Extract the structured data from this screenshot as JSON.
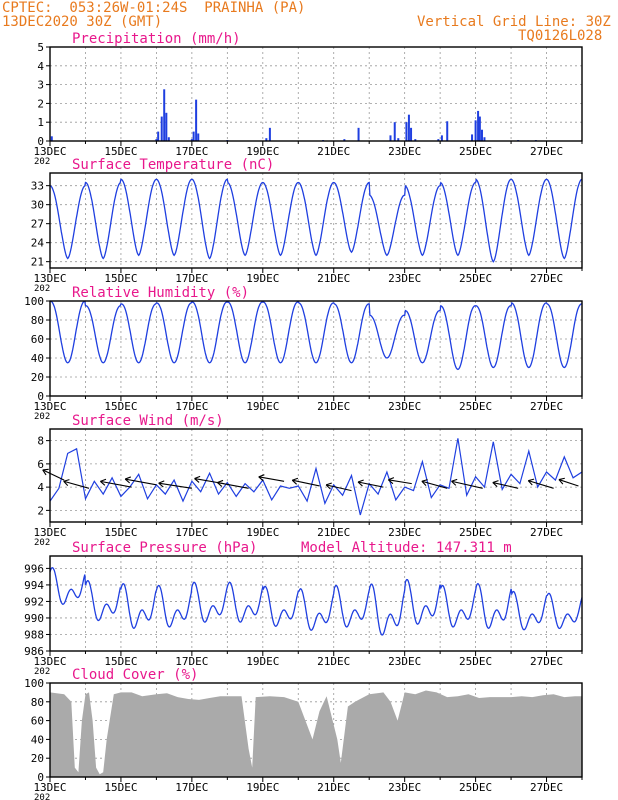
{
  "header": {
    "line1": "CPTEC:  053:26W-01:24S  PRAINHA (PA)",
    "line2": "13DEC2020 30Z (GMT)",
    "grid_note": "Vertical Grid Line: 30Z",
    "code": "TQ0126L028"
  },
  "colors": {
    "header": "#e87a1e",
    "title": "#e8188c",
    "series": "#1f3fe0",
    "cloud": "#aaaaaa",
    "grid": "#999999",
    "frame": "#000000"
  },
  "x_tick_labels": [
    "13DEC",
    "15DEC",
    "17DEC",
    "19DEC",
    "21DEC",
    "23DEC",
    "25DEC",
    "27DEC"
  ],
  "x_edge_fragment": "202",
  "chart_data": [
    {
      "id": "precipitation",
      "type": "bar",
      "title": "Precipitation (mm/h)",
      "x_unit": "days since 13DEC2020 00Z",
      "x_range": [
        0,
        15
      ],
      "ylim": [
        0,
        5
      ],
      "yticks": [
        0,
        1,
        2,
        3,
        4,
        5
      ],
      "grid": true,
      "bars": [
        [
          0.05,
          0.25
        ],
        [
          3.0,
          0.1
        ],
        [
          3.05,
          0.5
        ],
        [
          3.15,
          1.3
        ],
        [
          3.22,
          2.75
        ],
        [
          3.28,
          1.5
        ],
        [
          3.35,
          0.2
        ],
        [
          4.0,
          0.1
        ],
        [
          4.05,
          0.5
        ],
        [
          4.12,
          2.2
        ],
        [
          4.18,
          0.4
        ],
        [
          5.0,
          0.05
        ],
        [
          6.1,
          0.15
        ],
        [
          6.2,
          0.7
        ],
        [
          7.7,
          0.05
        ],
        [
          8.3,
          0.1
        ],
        [
          8.7,
          0.7
        ],
        [
          9.6,
          0.3
        ],
        [
          9.72,
          1.0
        ],
        [
          9.82,
          0.15
        ],
        [
          10.05,
          1.0
        ],
        [
          10.12,
          1.4
        ],
        [
          10.18,
          0.7
        ],
        [
          10.3,
          0.1
        ],
        [
          10.95,
          0.1
        ],
        [
          11.05,
          0.3
        ],
        [
          11.2,
          1.05
        ],
        [
          11.9,
          0.35
        ],
        [
          12.0,
          1.1
        ],
        [
          12.07,
          1.6
        ],
        [
          12.12,
          1.3
        ],
        [
          12.18,
          0.6
        ],
        [
          12.25,
          0.2
        ],
        [
          13.2,
          0.05
        ],
        [
          13.7,
          0.05
        ]
      ]
    },
    {
      "id": "temperature",
      "type": "line",
      "title": "Surface Temperature (nC)",
      "x_unit": "days since 13DEC2020 00Z",
      "x_range": [
        0,
        15
      ],
      "ylim": [
        20,
        35
      ],
      "yticks": [
        21,
        24,
        27,
        30,
        33
      ],
      "grid": true,
      "daily_min": [
        21.5,
        21.5,
        22.0,
        22.0,
        21.5,
        22.0,
        22.0,
        22.0,
        22.5,
        22.0,
        22.0,
        22.0,
        21.0,
        22.0,
        21.5
      ],
      "daily_max": [
        33.0,
        33.5,
        34.0,
        34.0,
        34.0,
        33.5,
        33.5,
        33.5,
        33.5,
        31.5,
        33.0,
        33.5,
        34.0,
        34.0,
        34.0
      ]
    },
    {
      "id": "humidity",
      "type": "line",
      "title": "Relative Humidity (%)",
      "x_unit": "days since 13DEC2020 00Z",
      "x_range": [
        0,
        15
      ],
      "ylim": [
        0,
        100
      ],
      "yticks": [
        0,
        20,
        40,
        60,
        80,
        100
      ],
      "grid": true,
      "daily_min": [
        35,
        35,
        35,
        35,
        35,
        35,
        35,
        35,
        35,
        40,
        35,
        28,
        30,
        30,
        30
      ],
      "daily_max": [
        100,
        95,
        97,
        98,
        99,
        99,
        99,
        98,
        97,
        85,
        90,
        95,
        95,
        98,
        97
      ]
    },
    {
      "id": "wind",
      "type": "line",
      "title": "Surface Wind (m/s)",
      "x_unit": "days since 13DEC2020 00Z",
      "x_range": [
        0,
        15
      ],
      "ylim": [
        1,
        9
      ],
      "yticks": [
        2,
        4,
        6,
        8
      ],
      "grid": true,
      "points": [
        [
          0,
          2.8
        ],
        [
          0.25,
          3.9
        ],
        [
          0.5,
          6.9
        ],
        [
          0.75,
          7.3
        ],
        [
          1.0,
          3.0
        ],
        [
          1.25,
          4.5
        ],
        [
          1.5,
          3.4
        ],
        [
          1.75,
          4.8
        ],
        [
          2.0,
          3.2
        ],
        [
          2.25,
          4.0
        ],
        [
          2.5,
          5.1
        ],
        [
          2.75,
          3.0
        ],
        [
          3.0,
          4.2
        ],
        [
          3.25,
          3.4
        ],
        [
          3.5,
          4.6
        ],
        [
          3.75,
          2.8
        ],
        [
          4.0,
          4.5
        ],
        [
          4.25,
          3.6
        ],
        [
          4.5,
          5.2
        ],
        [
          4.75,
          3.4
        ],
        [
          5.0,
          4.4
        ],
        [
          5.25,
          3.2
        ],
        [
          5.5,
          4.3
        ],
        [
          5.75,
          3.6
        ],
        [
          6.0,
          4.6
        ],
        [
          6.25,
          2.9
        ],
        [
          6.5,
          4.1
        ],
        [
          6.75,
          3.9
        ],
        [
          7.0,
          4.1
        ],
        [
          7.25,
          2.8
        ],
        [
          7.5,
          5.6
        ],
        [
          7.75,
          2.6
        ],
        [
          8.0,
          4.2
        ],
        [
          8.25,
          3.3
        ],
        [
          8.5,
          5.0
        ],
        [
          8.75,
          1.6
        ],
        [
          9.0,
          4.3
        ],
        [
          9.25,
          3.4
        ],
        [
          9.5,
          5.3
        ],
        [
          9.75,
          2.9
        ],
        [
          10.0,
          4.0
        ],
        [
          10.25,
          3.7
        ],
        [
          10.5,
          6.2
        ],
        [
          10.75,
          3.1
        ],
        [
          11.0,
          4.2
        ],
        [
          11.25,
          3.9
        ],
        [
          11.5,
          8.2
        ],
        [
          11.75,
          3.3
        ],
        [
          12.0,
          4.9
        ],
        [
          12.25,
          4.0
        ],
        [
          12.5,
          7.9
        ],
        [
          12.75,
          3.8
        ],
        [
          13.0,
          5.1
        ],
        [
          13.25,
          4.3
        ],
        [
          13.5,
          7.1
        ],
        [
          13.75,
          4.0
        ],
        [
          14.0,
          5.3
        ],
        [
          14.25,
          4.6
        ],
        [
          14.5,
          6.6
        ],
        [
          14.75,
          4.8
        ],
        [
          15.0,
          5.3
        ]
      ],
      "barbs": [
        [
          0.4,
          4.6,
          -1.1,
          1.6
        ],
        [
          1.1,
          3.9,
          -1.3,
          1.1
        ],
        [
          2.3,
          4.0,
          -1.6,
          0.9
        ],
        [
          3.0,
          4.2,
          -1.6,
          0.9
        ],
        [
          4.0,
          3.9,
          -1.7,
          0.8
        ],
        [
          4.9,
          4.3,
          -1.5,
          0.8
        ],
        [
          5.6,
          3.9,
          -1.6,
          0.9
        ],
        [
          6.6,
          4.5,
          -1.3,
          0.7
        ],
        [
          7.6,
          4.1,
          -1.4,
          0.9
        ],
        [
          8.5,
          3.7,
          -1.3,
          0.9
        ],
        [
          9.4,
          4.0,
          -1.3,
          0.8
        ],
        [
          10.2,
          4.3,
          -1.2,
          0.6
        ],
        [
          11.2,
          3.9,
          -1.3,
          1.1
        ],
        [
          12.2,
          3.9,
          -1.6,
          1.1
        ],
        [
          13.2,
          3.9,
          -1.3,
          0.9
        ],
        [
          14.2,
          3.9,
          -1.3,
          1.2
        ],
        [
          14.9,
          4.1,
          -1.0,
          1.0
        ]
      ]
    },
    {
      "id": "pressure",
      "type": "line",
      "title": "Surface Pressure (hPa)",
      "annotation": "Model Altitude: 147.311 m",
      "x_unit": "days since 13DEC2020 00Z",
      "x_range": [
        0,
        15
      ],
      "ylim": [
        986,
        997.5
      ],
      "yticks": [
        986,
        988,
        990,
        992,
        994,
        996
      ],
      "grid": true,
      "daily_base": [
        993.5,
        991.7,
        991.0,
        991.0,
        991.5,
        991.5,
        991.0,
        990.6,
        991.0,
        990.5,
        991.5,
        991.0,
        991.0,
        990.5,
        990.5
      ],
      "amplitude": [
        2.3,
        2.5,
        2.8,
        2.6,
        2.5,
        2.5,
        2.5,
        2.6,
        2.6,
        3.2,
        2.8,
        2.6,
        2.8,
        2.4,
        2.2
      ]
    },
    {
      "id": "cloud",
      "type": "area",
      "title": "Cloud Cover (%)",
      "x_unit": "days since 13DEC2020 00Z",
      "x_range": [
        0,
        15
      ],
      "ylim": [
        0,
        100
      ],
      "yticks": [
        0,
        20,
        40,
        60,
        80,
        100
      ],
      "grid": true,
      "points": [
        [
          0,
          90
        ],
        [
          0.4,
          88
        ],
        [
          0.6,
          80
        ],
        [
          0.7,
          10
        ],
        [
          0.8,
          5
        ],
        [
          0.9,
          60
        ],
        [
          1.0,
          88
        ],
        [
          1.1,
          90
        ],
        [
          1.2,
          60
        ],
        [
          1.3,
          10
        ],
        [
          1.4,
          3
        ],
        [
          1.5,
          5
        ],
        [
          1.6,
          40
        ],
        [
          1.8,
          88
        ],
        [
          2.0,
          90
        ],
        [
          2.3,
          90
        ],
        [
          2.6,
          86
        ],
        [
          3.0,
          88
        ],
        [
          3.3,
          89
        ],
        [
          3.6,
          85
        ],
        [
          3.9,
          83
        ],
        [
          4.2,
          82
        ],
        [
          4.5,
          84
        ],
        [
          4.8,
          86
        ],
        [
          5.1,
          86
        ],
        [
          5.4,
          86
        ],
        [
          5.6,
          30
        ],
        [
          5.7,
          10
        ],
        [
          5.8,
          85
        ],
        [
          6.2,
          86
        ],
        [
          6.6,
          85
        ],
        [
          7.0,
          80
        ],
        [
          7.4,
          40
        ],
        [
          7.6,
          70
        ],
        [
          7.8,
          86
        ],
        [
          8.1,
          40
        ],
        [
          8.2,
          15
        ],
        [
          8.4,
          75
        ],
        [
          8.6,
          80
        ],
        [
          9.0,
          88
        ],
        [
          9.4,
          90
        ],
        [
          9.6,
          80
        ],
        [
          9.8,
          60
        ],
        [
          10.0,
          90
        ],
        [
          10.3,
          88
        ],
        [
          10.6,
          92
        ],
        [
          10.9,
          90
        ],
        [
          11.2,
          85
        ],
        [
          11.5,
          86
        ],
        [
          11.8,
          88
        ],
        [
          12.1,
          84
        ],
        [
          12.4,
          85
        ],
        [
          12.7,
          85
        ],
        [
          13.0,
          85
        ],
        [
          13.3,
          86
        ],
        [
          13.6,
          85
        ],
        [
          13.9,
          87
        ],
        [
          14.2,
          88
        ],
        [
          14.5,
          85
        ],
        [
          14.8,
          86
        ],
        [
          15.0,
          86
        ]
      ]
    }
  ]
}
